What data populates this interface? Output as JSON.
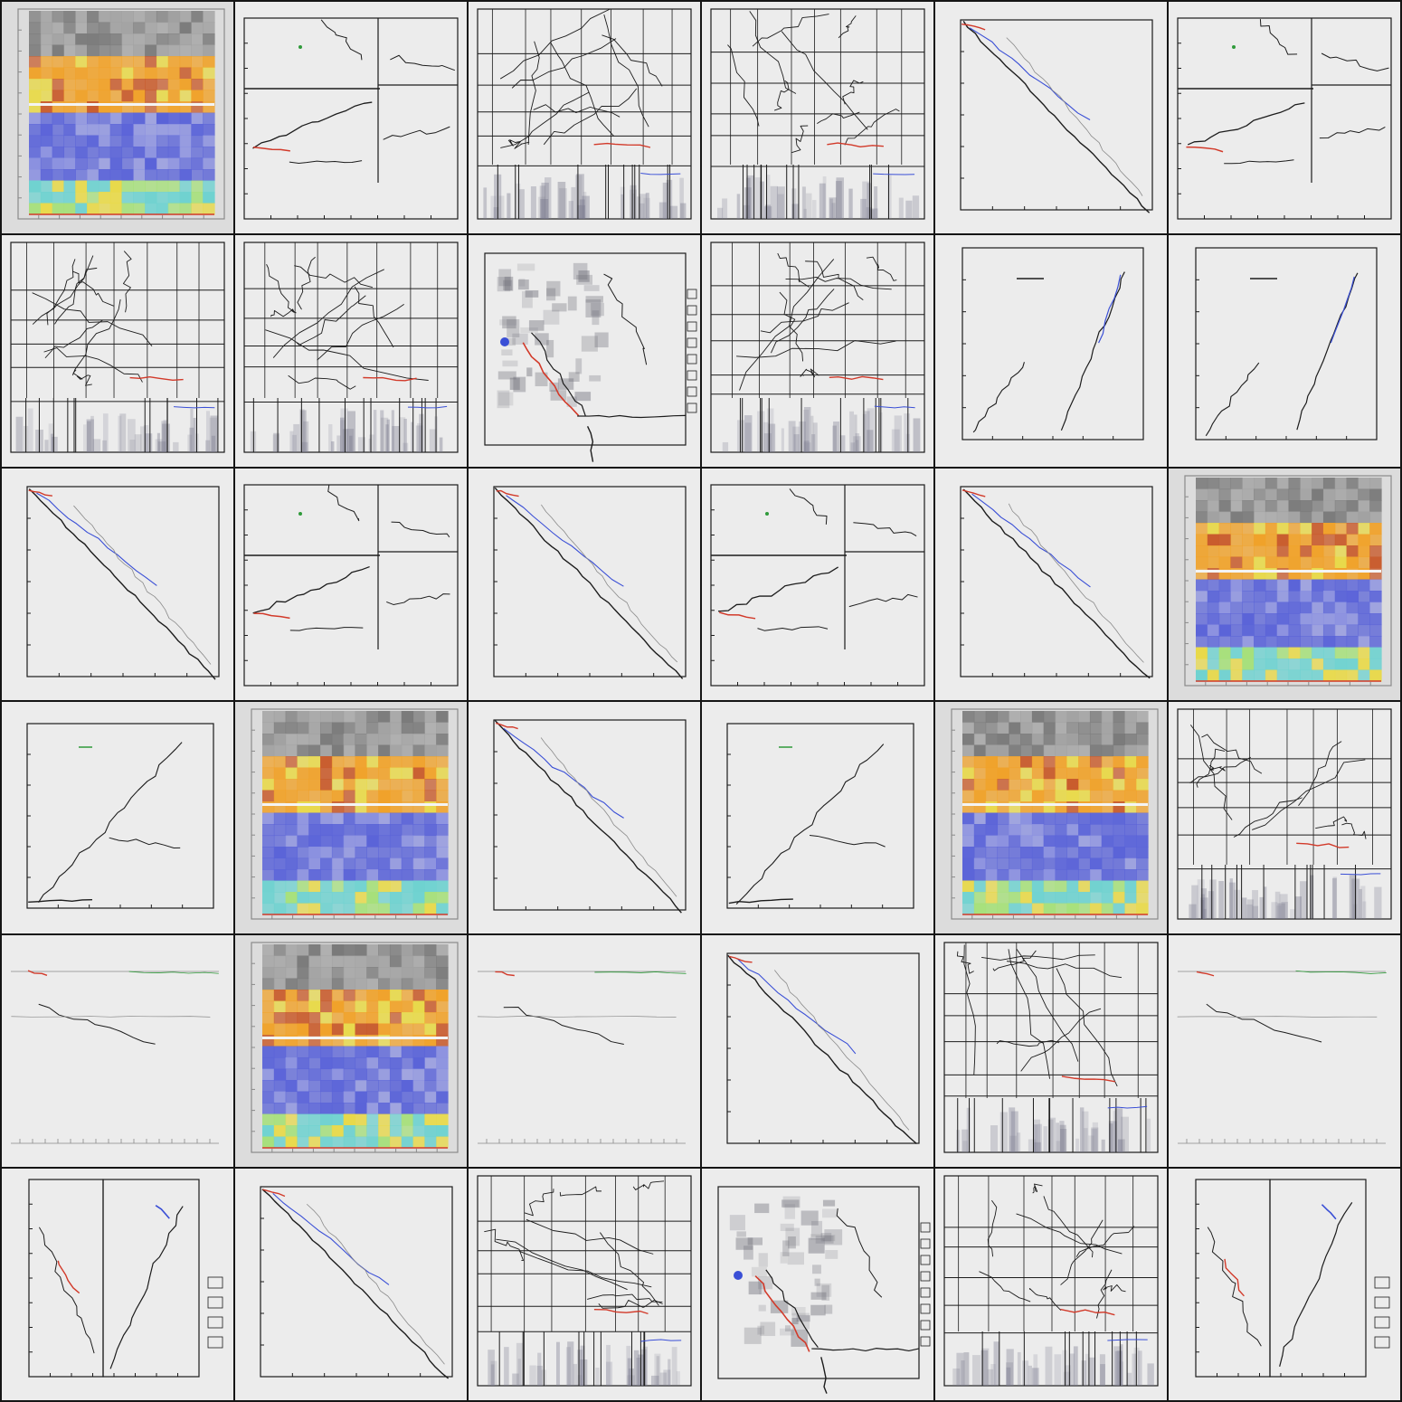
{
  "grid": {
    "rows": 6,
    "cols": 6,
    "tiles": [
      {
        "kind": "heatmap"
      },
      {
        "kind": "split"
      },
      {
        "kind": "dense"
      },
      {
        "kind": "dense"
      },
      {
        "kind": "diag"
      },
      {
        "kind": "split"
      },
      {
        "kind": "dense"
      },
      {
        "kind": "dense"
      },
      {
        "kind": "blob"
      },
      {
        "kind": "dense"
      },
      {
        "kind": "double"
      },
      {
        "kind": "double"
      },
      {
        "kind": "diag"
      },
      {
        "kind": "split"
      },
      {
        "kind": "diag"
      },
      {
        "kind": "split"
      },
      {
        "kind": "diag"
      },
      {
        "kind": "heatmap"
      },
      {
        "kind": "rise"
      },
      {
        "kind": "heatmap"
      },
      {
        "kind": "diag"
      },
      {
        "kind": "rise"
      },
      {
        "kind": "heatmap"
      },
      {
        "kind": "dense"
      },
      {
        "kind": "faint"
      },
      {
        "kind": "heatmap"
      },
      {
        "kind": "faint"
      },
      {
        "kind": "diag"
      },
      {
        "kind": "dense"
      },
      {
        "kind": "faint"
      },
      {
        "kind": "twin"
      },
      {
        "kind": "diag"
      },
      {
        "kind": "dense"
      },
      {
        "kind": "blob"
      },
      {
        "kind": "dense"
      },
      {
        "kind": "twin"
      }
    ]
  },
  "colors": {
    "line": "#1c1c1c",
    "faint": "#8a8a8a",
    "accent_red": "#d23a2a",
    "accent_blue": "#3a4fd6",
    "accent_green": "#2f9a3a",
    "heat_orange": "#f0a22a",
    "heat_blue": "#5a63d8",
    "heat_cyan": "#6fd2d0",
    "heat_yellow": "#e8d94a"
  }
}
